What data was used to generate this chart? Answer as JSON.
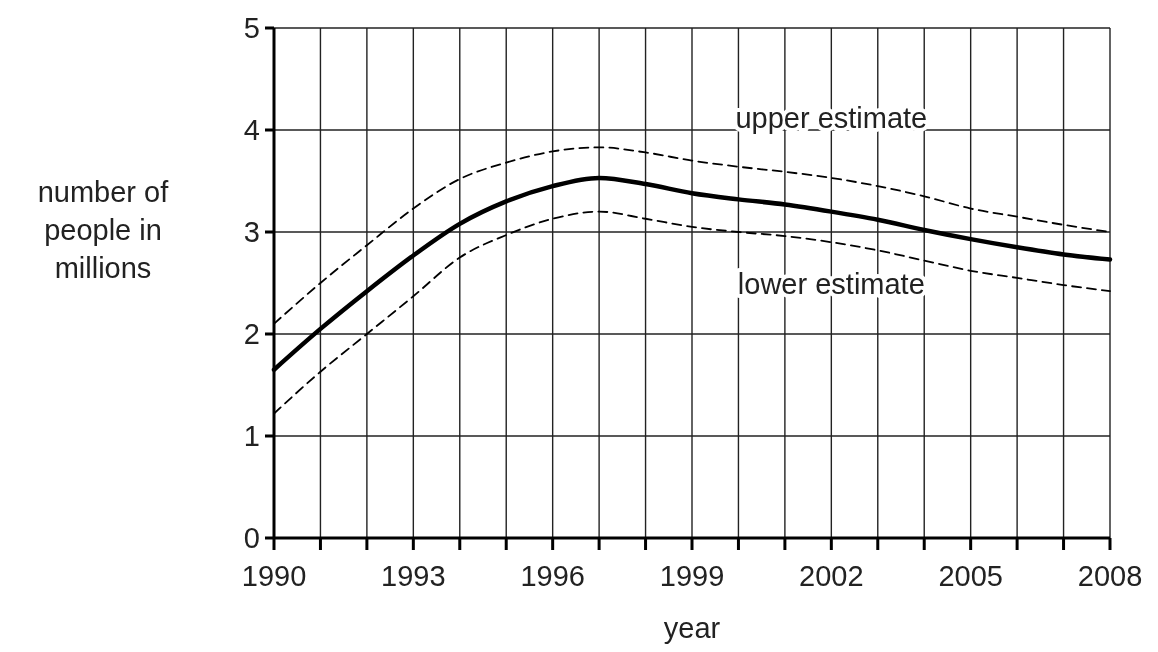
{
  "chart_data": {
    "type": "line",
    "xlabel": "year",
    "ylabel": "number of people in millions",
    "x": [
      1990,
      1991,
      1992,
      1993,
      1994,
      1995,
      1996,
      1997,
      1998,
      1999,
      2000,
      2001,
      2002,
      2003,
      2004,
      2005,
      2006,
      2007,
      2008
    ],
    "series": [
      {
        "color": "#000000",
        "line_style": "solid",
        "values": [
          1.65,
          2.05,
          2.42,
          2.77,
          3.08,
          3.3,
          3.45,
          3.53,
          3.47,
          3.38,
          3.32,
          3.27,
          3.2,
          3.12,
          3.02,
          2.93,
          2.85,
          2.78,
          2.73
        ]
      },
      {
        "name": "upper estimate",
        "color": "#000000",
        "line_style": "dashed",
        "values": [
          2.1,
          2.5,
          2.87,
          3.23,
          3.52,
          3.68,
          3.79,
          3.83,
          3.78,
          3.7,
          3.64,
          3.59,
          3.53,
          3.45,
          3.35,
          3.23,
          3.15,
          3.07,
          3.0
        ]
      },
      {
        "name": "lower estimate",
        "color": "#000000",
        "line_style": "dashed",
        "values": [
          1.22,
          1.63,
          2.0,
          2.37,
          2.75,
          2.97,
          3.13,
          3.2,
          3.13,
          3.05,
          3.0,
          2.96,
          2.9,
          2.82,
          2.72,
          2.62,
          2.55,
          2.48,
          2.42
        ]
      }
    ],
    "xlim": [
      1990,
      2008
    ],
    "xticks": [
      1990,
      {
        "value": 1991,
        "label": null
      },
      {
        "value": 1992,
        "label": null
      },
      1993,
      {
        "value": 1994,
        "label": null
      },
      {
        "value": 1995,
        "label": null
      },
      1996,
      {
        "value": 1997,
        "label": null
      },
      {
        "value": 1998,
        "label": null
      },
      1999,
      {
        "value": 2000,
        "label": null
      },
      {
        "value": 2001,
        "label": null
      },
      2002,
      {
        "value": 2003,
        "label": null
      },
      {
        "value": 2004,
        "label": null
      },
      2005,
      {
        "value": 2006,
        "label": null
      },
      {
        "value": 2007,
        "label": null
      },
      2008
    ],
    "ylim": [
      0,
      5
    ],
    "yticks": [
      0,
      1,
      2,
      3,
      4,
      5
    ],
    "grid": true,
    "legend": false,
    "marker": "none"
  }
}
